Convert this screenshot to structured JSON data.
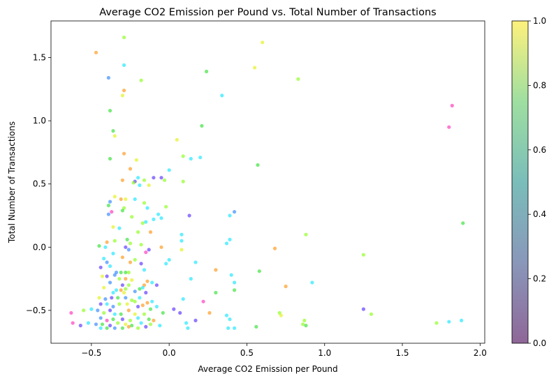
{
  "chart_data": {
    "type": "scatter",
    "title": "Average CO2 Emission per Pound vs. Total Number of Transactions",
    "xlabel": "Average CO2 Emission per Pound",
    "ylabel": "Total Number of Transactions",
    "xlim": [
      -0.76,
      2.03
    ],
    "ylim": [
      -0.76,
      1.79
    ],
    "xticks": [
      -0.5,
      0.0,
      0.5,
      1.0,
      1.5,
      2.0
    ],
    "xtick_labels": [
      "−0.5",
      "0.0",
      "0.5",
      "1.0",
      "1.5",
      "2.0"
    ],
    "yticks": [
      -0.5,
      0.0,
      0.5,
      1.0,
      1.5
    ],
    "ytick_labels": [
      "−0.5",
      "0.0",
      "0.5",
      "1.0",
      "1.5"
    ],
    "grid": false,
    "marker_alpha": 0.6,
    "colorbar": {
      "min": 0.0,
      "max": 1.0,
      "ticks": [
        0.0,
        0.2,
        0.4,
        0.6,
        0.8,
        1.0
      ],
      "tick_labels": [
        "0.0",
        "0.2",
        "0.4",
        "0.6",
        "0.8",
        "1.0"
      ],
      "colormap": [
        "#440154",
        "#3b528b",
        "#21918c",
        "#5ec962",
        "#fde725"
      ]
    },
    "point_colors": {
      "orange": "#ff8c00",
      "yellow": "#e0f000",
      "lime": "#7fff00",
      "green": "#22dd22",
      "cyan": "#00e5ff",
      "blue": "#1e7bff",
      "violet": "#4b1fff",
      "magenta": "#ff1fb4"
    },
    "points": [
      {
        "x": -0.47,
        "y": 1.54,
        "c": "orange"
      },
      {
        "x": -0.29,
        "y": 1.66,
        "c": "lime"
      },
      {
        "x": 0.6,
        "y": 1.62,
        "c": "yellow"
      },
      {
        "x": 0.55,
        "y": 1.42,
        "c": "yellow"
      },
      {
        "x": -0.29,
        "y": 1.44,
        "c": "cyan"
      },
      {
        "x": 0.24,
        "y": 1.39,
        "c": "green"
      },
      {
        "x": -0.39,
        "y": 1.34,
        "c": "blue"
      },
      {
        "x": 0.83,
        "y": 1.33,
        "c": "lime"
      },
      {
        "x": -0.18,
        "y": 1.32,
        "c": "lime"
      },
      {
        "x": -0.29,
        "y": 1.24,
        "c": "orange"
      },
      {
        "x": -0.3,
        "y": 1.2,
        "c": "yellow"
      },
      {
        "x": 0.34,
        "y": 1.2,
        "c": "cyan"
      },
      {
        "x": 1.82,
        "y": 1.12,
        "c": "magenta"
      },
      {
        "x": -0.38,
        "y": 1.08,
        "c": "green"
      },
      {
        "x": 0.21,
        "y": 0.96,
        "c": "green"
      },
      {
        "x": 1.8,
        "y": 0.95,
        "c": "magenta"
      },
      {
        "x": -0.36,
        "y": 0.92,
        "c": "green"
      },
      {
        "x": -0.35,
        "y": 0.88,
        "c": "yellow"
      },
      {
        "x": 0.05,
        "y": 0.85,
        "c": "yellow"
      },
      {
        "x": -0.29,
        "y": 0.74,
        "c": "orange"
      },
      {
        "x": 0.09,
        "y": 0.72,
        "c": "lime"
      },
      {
        "x": 0.14,
        "y": 0.7,
        "c": "cyan"
      },
      {
        "x": 0.2,
        "y": 0.71,
        "c": "cyan"
      },
      {
        "x": -0.38,
        "y": 0.7,
        "c": "green"
      },
      {
        "x": -0.21,
        "y": 0.69,
        "c": "yellow"
      },
      {
        "x": 0.57,
        "y": 0.65,
        "c": "green"
      },
      {
        "x": -0.25,
        "y": 0.62,
        "c": "orange"
      },
      {
        "x": 0.0,
        "y": 0.61,
        "c": "cyan"
      },
      {
        "x": -0.2,
        "y": 0.55,
        "c": "cyan"
      },
      {
        "x": -0.1,
        "y": 0.55,
        "c": "violet"
      },
      {
        "x": -0.05,
        "y": 0.55,
        "c": "violet"
      },
      {
        "x": -0.16,
        "y": 0.53,
        "c": "lime"
      },
      {
        "x": -0.3,
        "y": 0.53,
        "c": "orange"
      },
      {
        "x": -0.22,
        "y": 0.52,
        "c": "violet"
      },
      {
        "x": -0.03,
        "y": 0.53,
        "c": "lime"
      },
      {
        "x": 0.09,
        "y": 0.52,
        "c": "lime"
      },
      {
        "x": -0.19,
        "y": 0.49,
        "c": "cyan"
      },
      {
        "x": -0.13,
        "y": 0.49,
        "c": "yellow"
      },
      {
        "x": -0.23,
        "y": 0.51,
        "c": "lime"
      },
      {
        "x": -0.35,
        "y": 0.4,
        "c": "yellow"
      },
      {
        "x": -0.31,
        "y": 0.38,
        "c": "orange"
      },
      {
        "x": -0.28,
        "y": 0.38,
        "c": "yellow"
      },
      {
        "x": -0.22,
        "y": 0.38,
        "c": "cyan"
      },
      {
        "x": -0.16,
        "y": 0.35,
        "c": "lime"
      },
      {
        "x": -0.39,
        "y": 0.33,
        "c": "green"
      },
      {
        "x": -0.38,
        "y": 0.36,
        "c": "blue"
      },
      {
        "x": -0.02,
        "y": 0.32,
        "c": "lime"
      },
      {
        "x": -0.14,
        "y": 0.31,
        "c": "cyan"
      },
      {
        "x": -0.29,
        "y": 0.31,
        "c": "lime"
      },
      {
        "x": -0.3,
        "y": 0.29,
        "c": "green"
      },
      {
        "x": -0.37,
        "y": 0.28,
        "c": "magenta"
      },
      {
        "x": -0.39,
        "y": 0.26,
        "c": "blue"
      },
      {
        "x": 0.42,
        "y": 0.28,
        "c": "blue"
      },
      {
        "x": 0.39,
        "y": 0.25,
        "c": "cyan"
      },
      {
        "x": 0.13,
        "y": 0.25,
        "c": "violet"
      },
      {
        "x": -0.07,
        "y": 0.26,
        "c": "cyan"
      },
      {
        "x": -0.05,
        "y": 0.23,
        "c": "cyan"
      },
      {
        "x": -0.24,
        "y": 0.24,
        "c": "lime"
      },
      {
        "x": -0.15,
        "y": 0.2,
        "c": "cyan"
      },
      {
        "x": -0.1,
        "y": 0.22,
        "c": "cyan"
      },
      {
        "x": -0.17,
        "y": 0.19,
        "c": "lime"
      },
      {
        "x": 1.89,
        "y": 0.19,
        "c": "green"
      },
      {
        "x": -0.36,
        "y": 0.16,
        "c": "yellow"
      },
      {
        "x": -0.32,
        "y": 0.15,
        "c": "cyan"
      },
      {
        "x": -0.2,
        "y": 0.12,
        "c": "lime"
      },
      {
        "x": -0.12,
        "y": 0.12,
        "c": "orange"
      },
      {
        "x": 0.08,
        "y": 0.1,
        "c": "cyan"
      },
      {
        "x": 0.88,
        "y": 0.1,
        "c": "lime"
      },
      {
        "x": -0.27,
        "y": 0.06,
        "c": "green"
      },
      {
        "x": -0.35,
        "y": 0.05,
        "c": "lime"
      },
      {
        "x": -0.4,
        "y": 0.04,
        "c": "orange"
      },
      {
        "x": 0.39,
        "y": 0.06,
        "c": "cyan"
      },
      {
        "x": 0.37,
        "y": 0.03,
        "c": "cyan"
      },
      {
        "x": 0.08,
        "y": 0.05,
        "c": "cyan"
      },
      {
        "x": -0.25,
        "y": 0.03,
        "c": "lime"
      },
      {
        "x": -0.18,
        "y": 0.02,
        "c": "lime"
      },
      {
        "x": -0.45,
        "y": 0.01,
        "c": "green"
      },
      {
        "x": -0.41,
        "y": 0.0,
        "c": "cyan"
      },
      {
        "x": -0.28,
        "y": 0.0,
        "c": "violet"
      },
      {
        "x": -0.26,
        "y": -0.02,
        "c": "blue"
      },
      {
        "x": -0.13,
        "y": -0.02,
        "c": "violet"
      },
      {
        "x": -0.05,
        "y": 0.0,
        "c": "orange"
      },
      {
        "x": 0.08,
        "y": -0.02,
        "c": "yellow"
      },
      {
        "x": 0.68,
        "y": -0.01,
        "c": "orange"
      },
      {
        "x": -0.15,
        "y": -0.04,
        "c": "magenta"
      },
      {
        "x": -0.36,
        "y": -0.05,
        "c": "cyan"
      },
      {
        "x": -0.3,
        "y": -0.08,
        "c": "orange"
      },
      {
        "x": -0.22,
        "y": -0.1,
        "c": "lime"
      },
      {
        "x": 0.0,
        "y": -0.1,
        "c": "cyan"
      },
      {
        "x": -0.42,
        "y": -0.09,
        "c": "cyan"
      },
      {
        "x": 1.25,
        "y": -0.06,
        "c": "lime"
      },
      {
        "x": -0.4,
        "y": -0.12,
        "c": "blue"
      },
      {
        "x": -0.25,
        "y": -0.12,
        "c": "orange"
      },
      {
        "x": -0.18,
        "y": -0.13,
        "c": "violet"
      },
      {
        "x": -0.02,
        "y": -0.13,
        "c": "cyan"
      },
      {
        "x": 0.17,
        "y": -0.12,
        "c": "cyan"
      },
      {
        "x": -0.44,
        "y": -0.16,
        "c": "violet"
      },
      {
        "x": -0.38,
        "y": -0.15,
        "c": "cyan"
      },
      {
        "x": -0.34,
        "y": -0.2,
        "c": "blue"
      },
      {
        "x": -0.31,
        "y": -0.2,
        "c": "green"
      },
      {
        "x": -0.28,
        "y": -0.2,
        "c": "green"
      },
      {
        "x": -0.26,
        "y": -0.2,
        "c": "lime"
      },
      {
        "x": -0.16,
        "y": -0.18,
        "c": "cyan"
      },
      {
        "x": 0.3,
        "y": -0.18,
        "c": "orange"
      },
      {
        "x": 0.58,
        "y": -0.19,
        "c": "green"
      },
      {
        "x": 0.4,
        "y": -0.22,
        "c": "cyan"
      },
      {
        "x": -0.43,
        "y": -0.23,
        "c": "yellow"
      },
      {
        "x": -0.4,
        "y": -0.23,
        "c": "violet"
      },
      {
        "x": -0.35,
        "y": -0.22,
        "c": "blue"
      },
      {
        "x": -0.32,
        "y": -0.25,
        "c": "lime"
      },
      {
        "x": -0.28,
        "y": -0.25,
        "c": "orange"
      },
      {
        "x": -0.24,
        "y": -0.26,
        "c": "yellow"
      },
      {
        "x": -0.14,
        "y": -0.27,
        "c": "orange"
      },
      {
        "x": -0.11,
        "y": -0.28,
        "c": "cyan"
      },
      {
        "x": 0.14,
        "y": -0.25,
        "c": "cyan"
      },
      {
        "x": 0.42,
        "y": -0.28,
        "c": "cyan"
      },
      {
        "x": 0.92,
        "y": -0.28,
        "c": "cyan"
      },
      {
        "x": -0.38,
        "y": -0.28,
        "c": "blue"
      },
      {
        "x": -0.3,
        "y": -0.3,
        "c": "violet"
      },
      {
        "x": -0.26,
        "y": -0.3,
        "c": "lime"
      },
      {
        "x": -0.16,
        "y": -0.3,
        "c": "orange"
      },
      {
        "x": -0.08,
        "y": -0.3,
        "c": "violet"
      },
      {
        "x": 0.75,
        "y": -0.31,
        "c": "orange"
      },
      {
        "x": -0.42,
        "y": -0.32,
        "c": "yellow"
      },
      {
        "x": -0.34,
        "y": -0.34,
        "c": "cyan"
      },
      {
        "x": -0.31,
        "y": -0.34,
        "c": "orange"
      },
      {
        "x": -0.28,
        "y": -0.33,
        "c": "lime"
      },
      {
        "x": -0.19,
        "y": -0.33,
        "c": "green"
      },
      {
        "x": -0.17,
        "y": -0.32,
        "c": "cyan"
      },
      {
        "x": 0.42,
        "y": -0.34,
        "c": "green"
      },
      {
        "x": -0.36,
        "y": -0.36,
        "c": "cyan"
      },
      {
        "x": -0.29,
        "y": -0.36,
        "c": "yellow"
      },
      {
        "x": -0.22,
        "y": -0.35,
        "c": "blue"
      },
      {
        "x": -0.15,
        "y": -0.36,
        "c": "violet"
      },
      {
        "x": 0.3,
        "y": -0.36,
        "c": "green"
      },
      {
        "x": -0.45,
        "y": -0.4,
        "c": "yellow"
      },
      {
        "x": -0.41,
        "y": -0.41,
        "c": "blue"
      },
      {
        "x": -0.37,
        "y": -0.4,
        "c": "violet"
      },
      {
        "x": -0.33,
        "y": -0.4,
        "c": "green"
      },
      {
        "x": -0.28,
        "y": -0.4,
        "c": "blue"
      },
      {
        "x": -0.24,
        "y": -0.42,
        "c": "lime"
      },
      {
        "x": -0.22,
        "y": -0.43,
        "c": "lime"
      },
      {
        "x": -0.19,
        "y": -0.4,
        "c": "cyan"
      },
      {
        "x": -0.14,
        "y": -0.44,
        "c": "orange"
      },
      {
        "x": -0.11,
        "y": -0.43,
        "c": "cyan"
      },
      {
        "x": 0.09,
        "y": -0.41,
        "c": "cyan"
      },
      {
        "x": 0.22,
        "y": -0.43,
        "c": "magenta"
      },
      {
        "x": -0.44,
        "y": -0.45,
        "c": "violet"
      },
      {
        "x": -0.4,
        "y": -0.45,
        "c": "cyan"
      },
      {
        "x": -0.36,
        "y": -0.47,
        "c": "blue"
      },
      {
        "x": -0.32,
        "y": -0.45,
        "c": "lime"
      },
      {
        "x": -0.27,
        "y": -0.45,
        "c": "yellow"
      },
      {
        "x": -0.2,
        "y": -0.47,
        "c": "violet"
      },
      {
        "x": -0.17,
        "y": -0.46,
        "c": "orange"
      },
      {
        "x": -0.12,
        "y": -0.49,
        "c": "green"
      },
      {
        "x": -0.08,
        "y": -0.47,
        "c": "cyan"
      },
      {
        "x": 0.03,
        "y": -0.49,
        "c": "violet"
      },
      {
        "x": -0.63,
        "y": -0.52,
        "c": "magenta"
      },
      {
        "x": -0.55,
        "y": -0.5,
        "c": "lime"
      },
      {
        "x": -0.5,
        "y": -0.49,
        "c": "cyan"
      },
      {
        "x": -0.46,
        "y": -0.5,
        "c": "blue"
      },
      {
        "x": -0.42,
        "y": -0.52,
        "c": "lime"
      },
      {
        "x": -0.38,
        "y": -0.5,
        "c": "violet"
      },
      {
        "x": -0.35,
        "y": -0.53,
        "c": "cyan"
      },
      {
        "x": -0.31,
        "y": -0.53,
        "c": "green"
      },
      {
        "x": -0.26,
        "y": -0.5,
        "c": "orange"
      },
      {
        "x": -0.22,
        "y": -0.53,
        "c": "yellow"
      },
      {
        "x": -0.16,
        "y": -0.53,
        "c": "lime"
      },
      {
        "x": -0.04,
        "y": -0.52,
        "c": "green"
      },
      {
        "x": 0.07,
        "y": -0.52,
        "c": "violet"
      },
      {
        "x": 0.26,
        "y": -0.52,
        "c": "orange"
      },
      {
        "x": 0.37,
        "y": -0.54,
        "c": "cyan"
      },
      {
        "x": 0.71,
        "y": -0.52,
        "c": "lime"
      },
      {
        "x": 0.72,
        "y": -0.54,
        "c": "yellow"
      },
      {
        "x": 1.25,
        "y": -0.49,
        "c": "violet"
      },
      {
        "x": 1.3,
        "y": -0.53,
        "c": "lime"
      },
      {
        "x": -0.44,
        "y": -0.56,
        "c": "blue"
      },
      {
        "x": -0.4,
        "y": -0.58,
        "c": "magenta"
      },
      {
        "x": -0.36,
        "y": -0.57,
        "c": "green"
      },
      {
        "x": -0.3,
        "y": -0.57,
        "c": "violet"
      },
      {
        "x": -0.25,
        "y": -0.58,
        "c": "lime"
      },
      {
        "x": -0.2,
        "y": -0.56,
        "c": "cyan"
      },
      {
        "x": -0.13,
        "y": -0.57,
        "c": "green"
      },
      {
        "x": -0.1,
        "y": -0.58,
        "c": "orange"
      },
      {
        "x": 0.17,
        "y": -0.58,
        "c": "violet"
      },
      {
        "x": 0.39,
        "y": -0.57,
        "c": "cyan"
      },
      {
        "x": 0.87,
        "y": -0.58,
        "c": "lime"
      },
      {
        "x": 1.88,
        "y": -0.58,
        "c": "cyan"
      },
      {
        "x": -0.62,
        "y": -0.6,
        "c": "magenta"
      },
      {
        "x": -0.52,
        "y": -0.6,
        "c": "cyan"
      },
      {
        "x": -0.47,
        "y": -0.61,
        "c": "blue"
      },
      {
        "x": -0.43,
        "y": -0.61,
        "c": "green"
      },
      {
        "x": -0.38,
        "y": -0.62,
        "c": "violet"
      },
      {
        "x": -0.33,
        "y": -0.6,
        "c": "lime"
      },
      {
        "x": -0.28,
        "y": -0.61,
        "c": "yellow"
      },
      {
        "x": -0.24,
        "y": -0.62,
        "c": "green"
      },
      {
        "x": -0.18,
        "y": -0.6,
        "c": "cyan"
      },
      {
        "x": -0.12,
        "y": -0.61,
        "c": "lime"
      },
      {
        "x": -0.06,
        "y": -0.62,
        "c": "cyan"
      },
      {
        "x": 0.11,
        "y": -0.6,
        "c": "cyan"
      },
      {
        "x": 0.86,
        "y": -0.61,
        "c": "lime"
      },
      {
        "x": 1.72,
        "y": -0.6,
        "c": "lime"
      },
      {
        "x": 1.8,
        "y": -0.59,
        "c": "cyan"
      },
      {
        "x": -0.57,
        "y": -0.62,
        "c": "violet"
      },
      {
        "x": -0.44,
        "y": -0.64,
        "c": "cyan"
      },
      {
        "x": -0.4,
        "y": -0.64,
        "c": "green"
      },
      {
        "x": -0.35,
        "y": -0.64,
        "c": "blue"
      },
      {
        "x": -0.3,
        "y": -0.64,
        "c": "green"
      },
      {
        "x": -0.26,
        "y": -0.63,
        "c": "orange"
      },
      {
        "x": -0.2,
        "y": -0.64,
        "c": "lime"
      },
      {
        "x": -0.15,
        "y": -0.63,
        "c": "violet"
      },
      {
        "x": 0.12,
        "y": -0.64,
        "c": "cyan"
      },
      {
        "x": 0.38,
        "y": -0.64,
        "c": "cyan"
      },
      {
        "x": 0.42,
        "y": -0.64,
        "c": "cyan"
      },
      {
        "x": 0.56,
        "y": -0.63,
        "c": "green"
      },
      {
        "x": 0.88,
        "y": -0.62,
        "c": "green"
      }
    ]
  }
}
